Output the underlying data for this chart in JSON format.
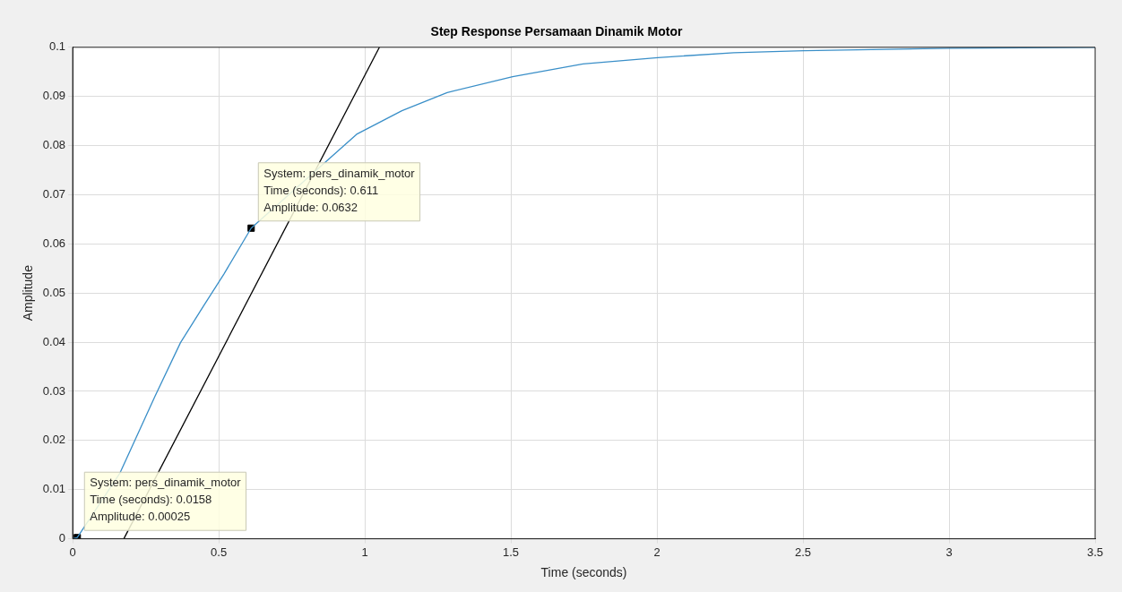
{
  "chart_data": {
    "type": "line",
    "title": "Step Response Persamaan Dinamik Motor",
    "xlabel": "Time (seconds)",
    "ylabel": "Amplitude",
    "xlim": [
      0,
      3.5
    ],
    "xticks": [
      0,
      0.5,
      1,
      1.5,
      2,
      2.5,
      3,
      3.5
    ],
    "ylim": [
      0,
      0.1
    ],
    "yticks": [
      0,
      0.01,
      0.02,
      0.03,
      0.04,
      0.05,
      0.06,
      0.07,
      0.08,
      0.09,
      0.1
    ],
    "grid": true,
    "legend": false,
    "series": [
      {
        "color": "#3a8fc8",
        "marker": "none",
        "x": [
          0,
          0.0158,
          0.162,
          0.281,
          0.369,
          0.446,
          0.518,
          0.611,
          0.972,
          1.127,
          1.282,
          1.506,
          1.747,
          2.003,
          2.263,
          2.503,
          3.0,
          3.5
        ],
        "values": [
          0,
          0.00025,
          0.0134,
          0.0289,
          0.0399,
          0.0472,
          0.0539,
          0.0632,
          0.0823,
          0.0871,
          0.0908,
          0.094,
          0.0966,
          0.0979,
          0.0989,
          0.0993,
          0.0998,
          0.1
        ]
      },
      {
        "type": "line",
        "color": "#000000",
        "marker": "none",
        "x": [
          0.175,
          1.05
        ],
        "values": [
          0,
          0.1
        ]
      },
      {
        "type": "scatter",
        "color": "#000000",
        "marker": "square",
        "x": [
          0.0158,
          0.611
        ],
        "values": [
          0.00025,
          0.0632
        ]
      }
    ],
    "annotations": [
      {
        "text": "System: pers_dinamik_motor\nTime (seconds): 0.611\nAmplitude: 0.0632",
        "x": 0.611,
        "y": 0.0632
      },
      {
        "text": "System: pers_dinamik_motor\nTime (seconds): 0.0158\nAmplitude: 0.00025",
        "x": 0.0158,
        "y": 0.00025
      }
    ]
  }
}
